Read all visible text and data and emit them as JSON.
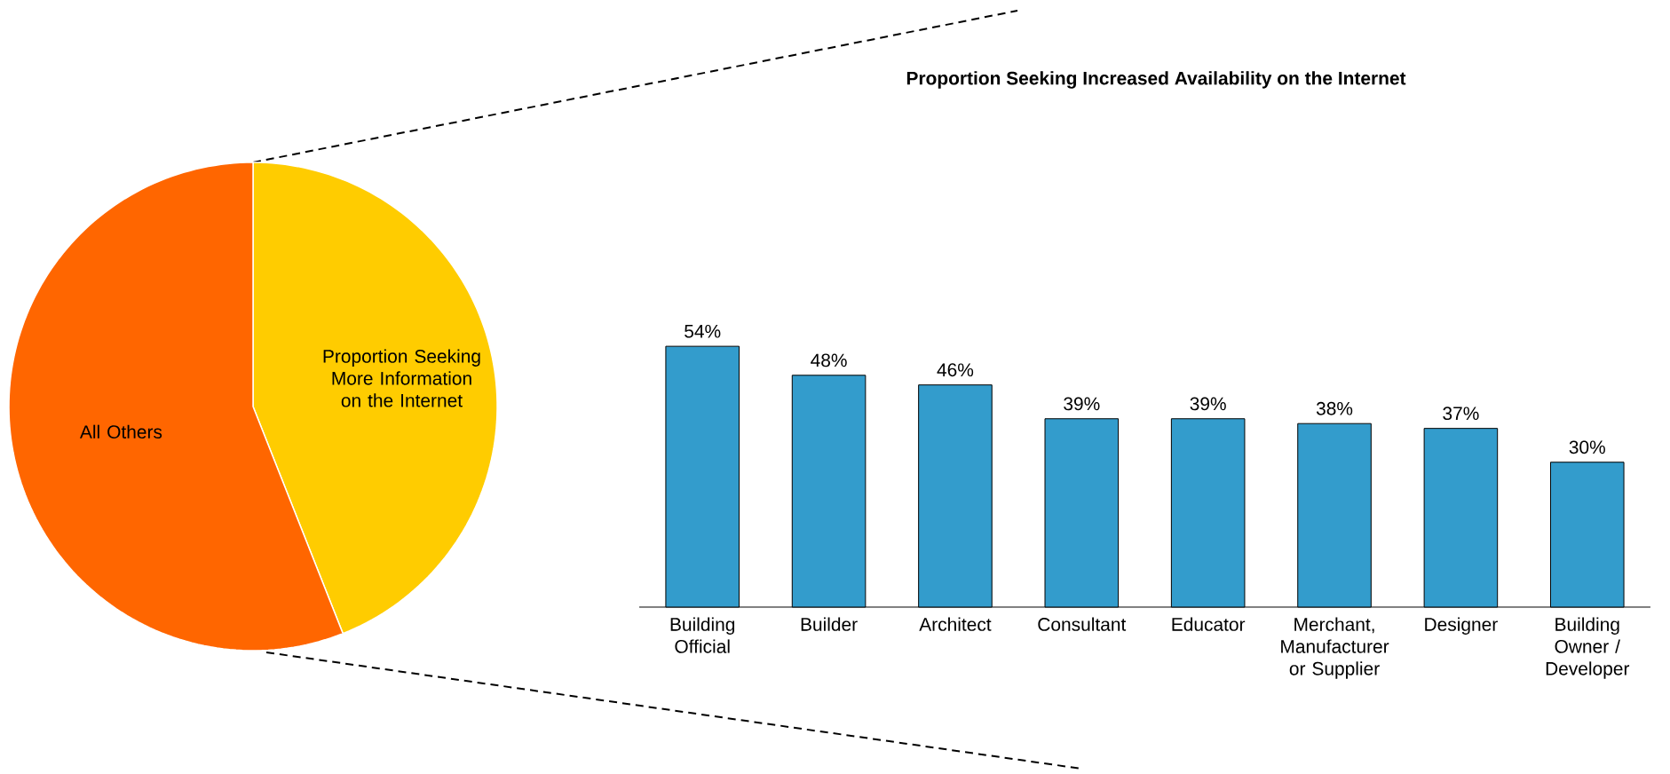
{
  "chart_data": [
    {
      "type": "pie",
      "categories": [
        "All Others",
        "Proportion Seeking More Information on the Internet"
      ],
      "values": [
        56,
        44
      ],
      "colors": [
        "#ff6600",
        "#ffcc00"
      ]
    },
    {
      "type": "bar",
      "title": "Proportion Seeking Increased Availability on the Internet",
      "categories": [
        "Building Official",
        "Builder",
        "Architect",
        "Consultant",
        "Educator",
        "Merchant, Manufacturer or Supplier",
        "Designer",
        "Building Owner / Developer"
      ],
      "values": [
        54,
        48,
        46,
        39,
        39,
        38,
        37,
        30
      ],
      "value_labels": [
        "54%",
        "48%",
        "46%",
        "39%",
        "39%",
        "38%",
        "37%",
        "30%"
      ],
      "color": "#339ccc"
    }
  ]
}
